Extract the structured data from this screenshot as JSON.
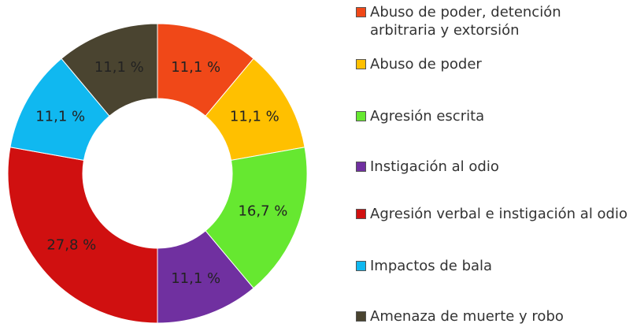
{
  "chart_data": {
    "type": "donut",
    "categories": [
      "Abuso de poder, detención arbitraria y extorsión",
      "Abuso de poder",
      "Agresión escrita",
      "Instigación al odio",
      "Agresión verbal e instigación al odio",
      "Impactos de bala",
      "Amenaza de muerte y robo"
    ],
    "values": [
      11.1,
      11.1,
      16.7,
      11.1,
      27.8,
      11.1,
      11.1
    ],
    "value_labels": [
      "11,1 %",
      "11,1 %",
      "16,7 %",
      "11,1 %",
      "27,8 %",
      "11,1 %",
      "11,1 %"
    ],
    "colors": [
      "#f04818",
      "#ffc000",
      "#66e830",
      "#7030a0",
      "#d01010",
      "#10b8f0",
      "#4a4430"
    ],
    "legend": "right"
  }
}
